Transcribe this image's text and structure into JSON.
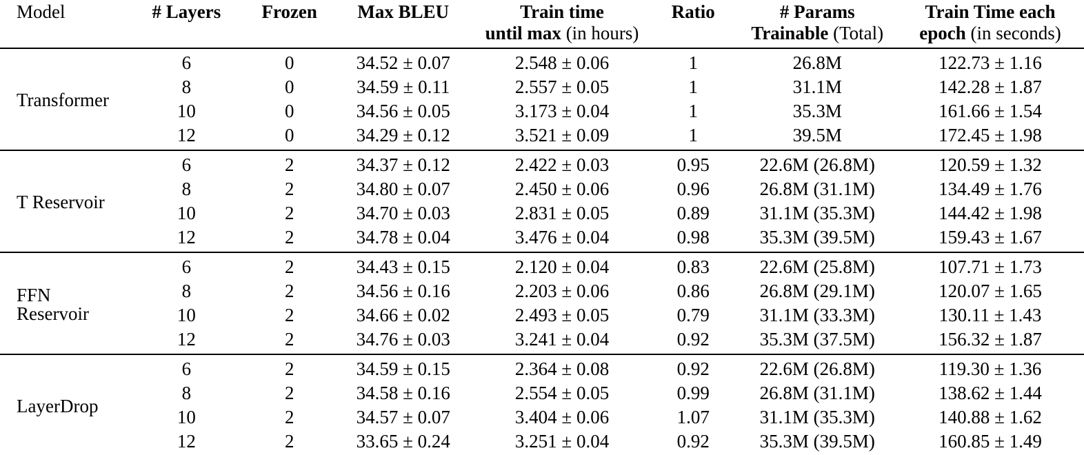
{
  "table": {
    "headers": [
      {
        "line1": "Model"
      },
      {
        "line1": "# Layers"
      },
      {
        "line1": "Frozen"
      },
      {
        "line1": "Max BLEU"
      },
      {
        "line1": "Train time",
        "line2_bold": "until max",
        "line2_normal": "(in hours)"
      },
      {
        "line1": "Ratio"
      },
      {
        "line1": "# Params",
        "line2_bold": "Trainable",
        "line2_normal": "(Total)"
      },
      {
        "line1": "Train Time each",
        "line2_bold": "epoch",
        "line2_normal": "(in seconds)"
      }
    ],
    "groups": [
      {
        "model": "Transformer",
        "rows": [
          {
            "layers": "6",
            "frozen": "0",
            "max_bleu": "34.52 ± 0.07",
            "train_time": "2.548 ± 0.06",
            "ratio": "1",
            "params": "26.8M",
            "epoch_time": "122.73 ± 1.16"
          },
          {
            "layers": "8",
            "frozen": "0",
            "max_bleu": "34.59 ± 0.11",
            "train_time": "2.557 ± 0.05",
            "ratio": "1",
            "params": "31.1M",
            "epoch_time": "142.28 ± 1.87"
          },
          {
            "layers": "10",
            "frozen": "0",
            "max_bleu": "34.56 ± 0.05",
            "train_time": "3.173 ± 0.04",
            "ratio": "1",
            "params": "35.3M",
            "epoch_time": "161.66 ± 1.54"
          },
          {
            "layers": "12",
            "frozen": "0",
            "max_bleu": "34.29 ± 0.12",
            "train_time": "3.521 ± 0.09",
            "ratio": "1",
            "params": "39.5M",
            "epoch_time": "172.45 ± 1.98"
          }
        ]
      },
      {
        "model": "T Reservoir",
        "rows": [
          {
            "layers": "6",
            "frozen": "2",
            "max_bleu": "34.37 ± 0.12",
            "train_time": "2.422 ± 0.03",
            "ratio": "0.95",
            "params": "22.6M (26.8M)",
            "epoch_time": "120.59 ± 1.32"
          },
          {
            "layers": "8",
            "frozen": "2",
            "max_bleu": "34.80 ± 0.07",
            "train_time": "2.450 ± 0.06",
            "ratio": "0.96",
            "params": "26.8M (31.1M)",
            "epoch_time": "134.49 ± 1.76"
          },
          {
            "layers": "10",
            "frozen": "2",
            "max_bleu": "34.70 ± 0.03",
            "train_time": "2.831 ± 0.05",
            "ratio": "0.89",
            "params": "31.1M (35.3M)",
            "epoch_time": "144.42 ± 1.98"
          },
          {
            "layers": "12",
            "frozen": "2",
            "max_bleu": "34.78 ± 0.04",
            "train_time": "3.476 ± 0.04",
            "ratio": "0.98",
            "params": "35.3M (39.5M)",
            "epoch_time": "159.43 ± 1.67"
          }
        ]
      },
      {
        "model": "FFN Reservoir",
        "rows": [
          {
            "layers": "6",
            "frozen": "2",
            "max_bleu": "34.43 ± 0.15",
            "train_time": "2.120 ± 0.04",
            "ratio": "0.83",
            "params": "22.6M (25.8M)",
            "epoch_time": "107.71 ± 1.73"
          },
          {
            "layers": "8",
            "frozen": "2",
            "max_bleu": "34.56 ± 0.16",
            "train_time": "2.203 ± 0.06",
            "ratio": "0.86",
            "params": "26.8M (29.1M)",
            "epoch_time": "120.07 ± 1.65"
          },
          {
            "layers": "10",
            "frozen": "2",
            "max_bleu": "34.66 ± 0.02",
            "train_time": "2.493 ± 0.05",
            "ratio": "0.79",
            "params": "31.1M (33.3M)",
            "epoch_time": "130.11 ± 1.43"
          },
          {
            "layers": "12",
            "frozen": "2",
            "max_bleu": "34.76 ± 0.03",
            "train_time": "3.241 ± 0.04",
            "ratio": "0.92",
            "params": "35.3M (37.5M)",
            "epoch_time": "156.32 ± 1.87"
          }
        ]
      },
      {
        "model": "LayerDrop",
        "rows": [
          {
            "layers": "6",
            "frozen": "2",
            "max_bleu": "34.59 ± 0.15",
            "train_time": "2.364 ± 0.08",
            "ratio": "0.92",
            "params": "22.6M (26.8M)",
            "epoch_time": "119.30 ± 1.36"
          },
          {
            "layers": "8",
            "frozen": "2",
            "max_bleu": "34.58 ± 0.16",
            "train_time": "2.554 ± 0.05",
            "ratio": "0.99",
            "params": "26.8M (31.1M)",
            "epoch_time": "138.62 ± 1.44"
          },
          {
            "layers": "10",
            "frozen": "2",
            "max_bleu": "34.57 ± 0.07",
            "train_time": "3.404 ± 0.06",
            "ratio": "1.07",
            "params": "31.1M (35.3M)",
            "epoch_time": "140.88 ± 1.62"
          },
          {
            "layers": "12",
            "frozen": "2",
            "max_bleu": "33.65 ± 0.24",
            "train_time": "3.251 ± 0.04",
            "ratio": "0.92",
            "params": "35.3M (39.5M)",
            "epoch_time": "160.85 ± 1.49"
          }
        ]
      }
    ]
  }
}
